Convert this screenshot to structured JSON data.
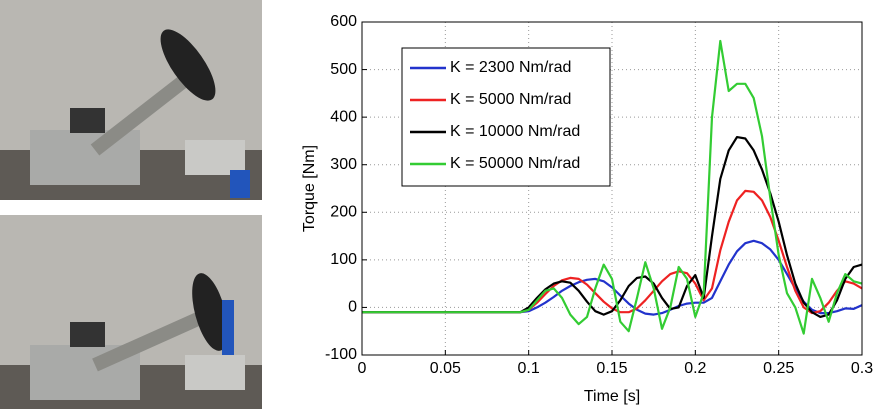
{
  "chart_data": {
    "type": "line",
    "xlabel": "Time [s]",
    "ylabel": "Torque [Nm]",
    "x": [
      0,
      0.005,
      0.01,
      0.015,
      0.02,
      0.025,
      0.03,
      0.035,
      0.04,
      0.045,
      0.05,
      0.055,
      0.06,
      0.065,
      0.07,
      0.075,
      0.08,
      0.085,
      0.09,
      0.095,
      0.1,
      0.105,
      0.11,
      0.115,
      0.12,
      0.125,
      0.13,
      0.135,
      0.14,
      0.145,
      0.15,
      0.155,
      0.16,
      0.165,
      0.17,
      0.175,
      0.18,
      0.185,
      0.19,
      0.195,
      0.2,
      0.205,
      0.21,
      0.215,
      0.22,
      0.225,
      0.23,
      0.235,
      0.24,
      0.245,
      0.25,
      0.255,
      0.26,
      0.265,
      0.27,
      0.275,
      0.28,
      0.285,
      0.29,
      0.295,
      0.3
    ],
    "series": [
      {
        "name": "K = 2300 Nm/rad",
        "color": "#2233cc",
        "values": [
          -10,
          -10,
          -10,
          -10,
          -10,
          -10,
          -10,
          -10,
          -10,
          -10,
          -10,
          -10,
          -10,
          -10,
          -10,
          -10,
          -10,
          -10,
          -10,
          -10,
          -8,
          0,
          10,
          22,
          35,
          45,
          53,
          58,
          60,
          55,
          42,
          25,
          8,
          -5,
          -13,
          -15,
          -12,
          -5,
          3,
          8,
          10,
          10,
          20,
          55,
          90,
          118,
          135,
          140,
          135,
          122,
          100,
          70,
          40,
          12,
          -5,
          -12,
          -12,
          -8,
          -2,
          -3,
          5
        ]
      },
      {
        "name": "K = 5000 Nm/rad",
        "color": "#ee2222",
        "values": [
          -10,
          -10,
          -10,
          -10,
          -10,
          -10,
          -10,
          -10,
          -10,
          -10,
          -10,
          -10,
          -10,
          -10,
          -10,
          -10,
          -10,
          -10,
          -10,
          -10,
          -5,
          10,
          28,
          45,
          57,
          62,
          60,
          48,
          30,
          12,
          -2,
          -10,
          -10,
          -2,
          15,
          35,
          55,
          70,
          76,
          72,
          50,
          15,
          40,
          120,
          180,
          225,
          245,
          243,
          225,
          190,
          140,
          85,
          35,
          0,
          -12,
          -8,
          10,
          35,
          55,
          50,
          40
        ]
      },
      {
        "name": "K = 10000 Nm/rad",
        "color": "#000000",
        "values": [
          -10,
          -10,
          -10,
          -10,
          -10,
          -10,
          -10,
          -10,
          -10,
          -10,
          -10,
          -10,
          -10,
          -10,
          -10,
          -10,
          -10,
          -10,
          -10,
          -10,
          0,
          20,
          38,
          50,
          55,
          52,
          35,
          12,
          -8,
          -15,
          -8,
          15,
          45,
          62,
          65,
          50,
          20,
          -3,
          0,
          45,
          68,
          20,
          150,
          270,
          330,
          358,
          355,
          330,
          290,
          240,
          180,
          110,
          50,
          10,
          -10,
          -20,
          -15,
          15,
          60,
          85,
          90
        ]
      },
      {
        "name": "K = 50000 Nm/rad",
        "color": "#33cc33",
        "values": [
          -10,
          -10,
          -10,
          -10,
          -10,
          -10,
          -10,
          -10,
          -10,
          -10,
          -10,
          -10,
          -10,
          -10,
          -10,
          -10,
          -10,
          -10,
          -10,
          -10,
          -5,
          15,
          35,
          40,
          20,
          -15,
          -35,
          -20,
          40,
          90,
          60,
          -30,
          -50,
          20,
          95,
          40,
          -45,
          0,
          85,
          60,
          -20,
          30,
          400,
          560,
          455,
          470,
          470,
          440,
          360,
          230,
          110,
          30,
          0,
          -55,
          60,
          20,
          -30,
          30,
          70,
          55,
          50
        ]
      }
    ],
    "xlim": [
      0,
      0.3
    ],
    "xticks": [
      0,
      0.05,
      0.1,
      0.15,
      0.2,
      0.25,
      0.3
    ],
    "ylim": [
      -100,
      600
    ],
    "yticks": [
      -100,
      0,
      100,
      200,
      300,
      400,
      500,
      600
    ],
    "grid": true,
    "legend": "upper-left"
  }
}
